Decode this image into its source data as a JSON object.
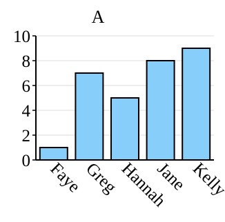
{
  "chart_data": {
    "type": "bar",
    "title": "A",
    "xlabel": "",
    "ylabel": "",
    "categories": [
      "Faye",
      "Greg",
      "Hannah",
      "Jane",
      "Kelly"
    ],
    "values": [
      1,
      7,
      5,
      8,
      9
    ],
    "ylim": [
      0,
      10
    ],
    "yticks": [
      "0",
      "2",
      "4",
      "6",
      "8",
      "10"
    ],
    "grid": "horizontal",
    "legend": "none",
    "colors": {
      "bar_fill": "#87CEFA",
      "bar_stroke": "#000000",
      "grid": "#DDDDDD",
      "axis": "#000000"
    }
  }
}
